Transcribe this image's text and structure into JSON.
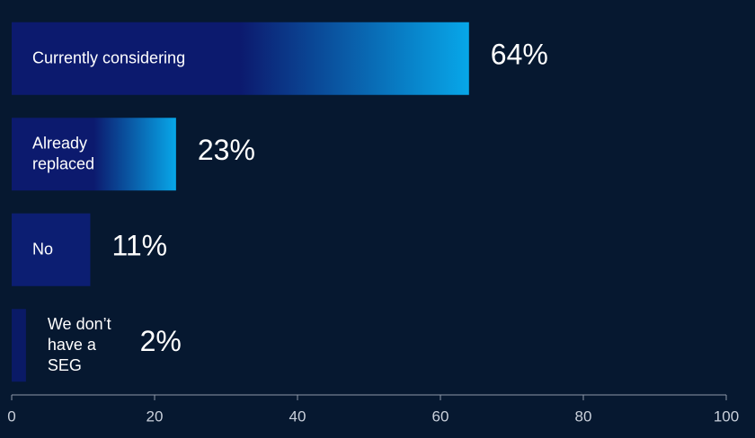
{
  "chart_data": {
    "type": "barh",
    "categories": [
      "Currently considering",
      "Already\nreplaced",
      "No",
      "We don’t\nhave a\nSEG"
    ],
    "values": [
      64,
      23,
      11,
      2
    ],
    "value_labels": [
      "64%",
      "23%",
      "11%",
      "2%"
    ],
    "bar_colors": [
      [
        "#0c1a6e",
        "#07a7e9"
      ],
      [
        "#0c1a6e",
        "#07a7e9"
      ],
      [
        "#0c1e72"
      ],
      [
        "#0a1a66"
      ]
    ],
    "xlim": [
      0,
      100
    ],
    "xticks": [
      0,
      20,
      40,
      60,
      80,
      100
    ]
  }
}
